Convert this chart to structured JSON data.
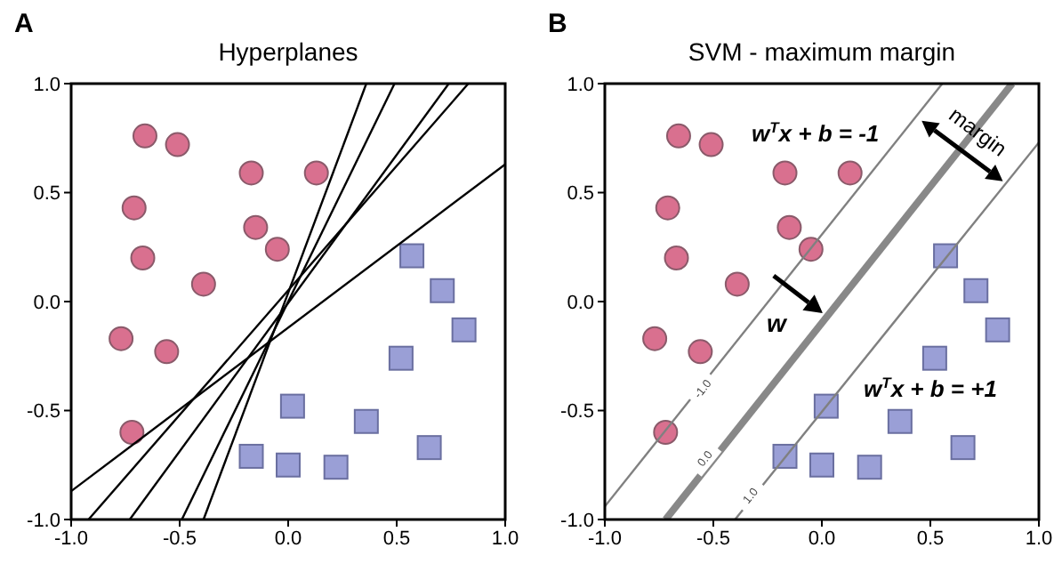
{
  "chart_data": [
    {
      "type": "scatter",
      "title": "Hyperplanes",
      "annotations": [
        "A"
      ],
      "xlim": [
        -1,
        1
      ],
      "ylim": [
        -1,
        1
      ],
      "xticks": [
        {
          "value": -1,
          "label": "-1.0"
        },
        {
          "value": -0.5,
          "label": "-0.5"
        },
        {
          "value": 0,
          "label": "0.0"
        },
        0.5,
        {
          "value": 1,
          "label": "1.0"
        }
      ],
      "yticks": [
        {
          "value": -1,
          "label": "-1.0"
        },
        {
          "value": -0.5,
          "label": "-0.5"
        },
        {
          "value": 0,
          "label": "0.0"
        },
        0.5,
        {
          "value": 1,
          "label": "1.0"
        }
      ],
      "series": [
        {
          "color": "#d9708f",
          "marker": "circle",
          "x": [
            -0.66,
            -0.51,
            -0.17,
            0.13,
            -0.71,
            -0.15,
            -0.05,
            -0.67,
            -0.39,
            -0.77,
            -0.56,
            -0.72
          ],
          "values": [
            0.76,
            0.72,
            0.59,
            0.59,
            0.43,
            0.34,
            0.24,
            0.2,
            0.08,
            -0.17,
            -0.23,
            -0.6
          ]
        },
        {
          "color": "#9a9fd6",
          "marker": "square",
          "x": [
            0.57,
            0.71,
            0.81,
            0.52,
            0.02,
            0.36,
            -0.17,
            0,
            0.22,
            0.65
          ],
          "values": [
            0.21,
            0.05,
            -0.13,
            -0.26,
            -0.48,
            -0.55,
            -0.71,
            -0.75,
            -0.76,
            -0.67
          ]
        },
        {
          "type": "line",
          "color": "#000000",
          "marker": "none",
          "x": [
            -0.39,
            0.36
          ],
          "values": [
            -1,
            1
          ]
        },
        {
          "type": "line",
          "color": "#000000",
          "marker": "none",
          "x": [
            -0.49,
            0.49
          ],
          "values": [
            -1,
            1
          ]
        },
        {
          "type": "line",
          "color": "#000000",
          "marker": "none",
          "x": [
            -0.73,
            0.74
          ],
          "values": [
            -1,
            1
          ]
        },
        {
          "type": "line",
          "color": "#000000",
          "marker": "none",
          "x": [
            -0.92,
            0.83
          ],
          "values": [
            -1,
            1
          ]
        },
        {
          "type": "line",
          "color": "#000000",
          "marker": "none",
          "x": [
            -1,
            1
          ],
          "values": [
            -0.87,
            0.63
          ]
        }
      ]
    },
    {
      "type": "scatter",
      "title": "SVM - maximum margin",
      "annotations": [
        "B",
        "w$^{T}$x + b = -1",
        "w$^{T}$x + b = +1",
        "w",
        {
          "text": "margin",
          "x": 0.72,
          "y": 0.78
        },
        {
          "text": "-1.0",
          "x": -0.55,
          "y": -0.4
        },
        {
          "text": "0.0",
          "x": -0.54,
          "y": -0.72
        },
        {
          "text": "1.0",
          "x": -0.33,
          "y": -0.89
        }
      ],
      "xlim": [
        -1,
        1
      ],
      "ylim": [
        -1,
        1
      ],
      "xticks": [
        {
          "value": -1,
          "label": "-1.0"
        },
        {
          "value": -0.5,
          "label": "-0.5"
        },
        {
          "value": 0,
          "label": "0.0"
        },
        0.5,
        {
          "value": 1,
          "label": "1.0"
        }
      ],
      "yticks": [
        {
          "value": -1,
          "label": "-1.0"
        },
        {
          "value": -0.5,
          "label": "-0.5"
        },
        {
          "value": 0,
          "label": "0.0"
        },
        0.5,
        {
          "value": 1,
          "label": "1.0"
        }
      ],
      "series": [
        {
          "color": "#d9708f",
          "marker": "circle",
          "x": [
            -0.66,
            -0.51,
            -0.17,
            0.13,
            -0.71,
            -0.15,
            -0.05,
            -0.67,
            -0.39,
            -0.77,
            -0.56,
            -0.72
          ],
          "values": [
            0.76,
            0.72,
            0.59,
            0.59,
            0.43,
            0.34,
            0.24,
            0.2,
            0.08,
            -0.17,
            -0.23,
            -0.6
          ]
        },
        {
          "color": "#9a9fd6",
          "marker": "square",
          "x": [
            0.57,
            0.71,
            0.81,
            0.52,
            0.02,
            0.36,
            -0.17,
            0,
            0.22,
            0.65
          ],
          "values": [
            0.21,
            0.05,
            -0.13,
            -0.26,
            -0.48,
            -0.55,
            -0.71,
            -0.75,
            -0.76,
            -0.67
          ]
        },
        {
          "type": "line",
          "color": "#808080",
          "marker": "none",
          "x": [
            -1,
            0.555
          ],
          "values": [
            -0.94,
            1
          ]
        },
        {
          "type": "line",
          "color": "#888888",
          "marker": "none",
          "x": [
            -0.72,
            0.877
          ],
          "values": [
            -1,
            1
          ]
        },
        {
          "type": "line",
          "color": "#808080",
          "marker": "none",
          "x": [
            -0.4,
            1
          ],
          "values": [
            -1,
            0.73
          ]
        }
      ]
    }
  ]
}
